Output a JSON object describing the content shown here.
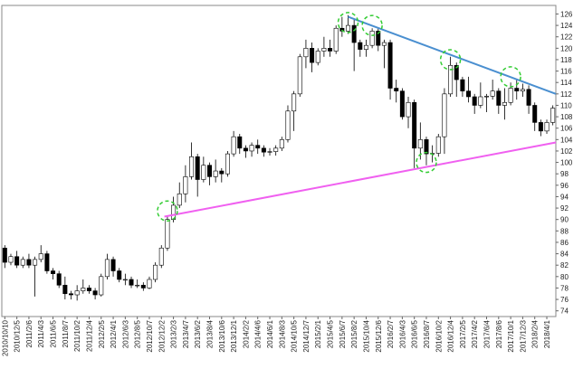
{
  "chart_data": {
    "type": "candlestick",
    "categories": [
      "2010/10/10",
      null,
      "2010/12/5",
      null,
      "2011/2/6",
      null,
      "2011/4/3",
      null,
      "2011/6/5",
      null,
      "2011/8/7",
      null,
      "2011/10/2",
      null,
      "2011/12/4",
      null,
      "2012/2/5",
      null,
      "2012/4/1",
      null,
      "2012/6/3",
      null,
      "2012/8/5",
      null,
      "2012/10/7",
      null,
      "2012/12/2",
      null,
      "2013/2/3",
      null,
      "2013/4/7",
      null,
      "2013/6/2",
      null,
      "2013/8/4",
      null,
      "2013/10/6",
      null,
      "2013/12/1",
      null,
      "2014/2/2",
      null,
      "2014/4/6",
      null,
      "2014/6/1",
      null,
      "2014/8/3",
      null,
      "2014/10/5",
      null,
      "2014/12/7",
      null,
      "2015/2/1",
      null,
      "2015/4/5",
      null,
      "2015/6/7",
      null,
      "2015/8/2",
      null,
      "2015/10/4",
      null,
      "2015/12/6",
      null,
      "2016/2/7",
      null,
      "2016/4/3",
      null,
      "2016/6/5",
      null,
      "2016/8/7",
      null,
      "2016/10/2",
      null,
      "2016/12/4",
      null,
      "2017/2/5",
      null,
      "2017/4/2",
      null,
      "2017/6/4",
      null,
      "2017/8/6",
      null,
      "2017/10/1",
      null,
      "2017/12/3",
      null,
      "2018/2/4",
      null,
      "2018/4/1",
      null
    ],
    "ohlc": [
      [
        85,
        85.5,
        81.5,
        82.5
      ],
      [
        82.5,
        84,
        82,
        83.5
      ],
      [
        83.5,
        84.5,
        81.5,
        82
      ],
      [
        82,
        83.5,
        81.5,
        83
      ],
      [
        83,
        84,
        81.5,
        82
      ],
      [
        82,
        83.5,
        76.5,
        83
      ],
      [
        83,
        85.5,
        82.5,
        84
      ],
      [
        84,
        84.5,
        80.5,
        81
      ],
      [
        81,
        81.5,
        79.5,
        80.5
      ],
      [
        80.5,
        81,
        78,
        78.5
      ],
      [
        78.5,
        80,
        76,
        77
      ],
      [
        77,
        77.5,
        76,
        76.8
      ],
      [
        76.8,
        78.5,
        75.8,
        77.5
      ],
      [
        77.5,
        79.5,
        77,
        78
      ],
      [
        78,
        78.5,
        77,
        77.5
      ],
      [
        77.5,
        78,
        76,
        76.8
      ],
      [
        76.8,
        80.5,
        76.5,
        80
      ],
      [
        80,
        84,
        79.5,
        83
      ],
      [
        83,
        83.5,
        80,
        81
      ],
      [
        81,
        81.5,
        79,
        79.5
      ],
      [
        79.5,
        80.5,
        78.5,
        79.5
      ],
      [
        79.5,
        80,
        78,
        78.5
      ],
      [
        78.5,
        79.5,
        78,
        78.5
      ],
      [
        78.5,
        79,
        77.5,
        78
      ],
      [
        78,
        80,
        77.8,
        79.5
      ],
      [
        79.5,
        82.5,
        79,
        82
      ],
      [
        82,
        85.5,
        81.5,
        85
      ],
      [
        85,
        90.5,
        84.5,
        90
      ],
      [
        90,
        94,
        89.5,
        92.5
      ],
      [
        92.5,
        96.5,
        92,
        94.5
      ],
      [
        94.5,
        99.5,
        93,
        97.5
      ],
      [
        97.5,
        103.5,
        97,
        101
      ],
      [
        101,
        101.5,
        94,
        97
      ],
      [
        97,
        101,
        96.5,
        99.5
      ],
      [
        99.5,
        100,
        96,
        97.5
      ],
      [
        97.5,
        100.5,
        96.5,
        98.5
      ],
      [
        98.5,
        99,
        96.5,
        98
      ],
      [
        98,
        102,
        97.5,
        101.5
      ],
      [
        101.5,
        105.5,
        101,
        104.5
      ],
      [
        104.5,
        105,
        101.5,
        102.5
      ],
      [
        102.5,
        103,
        100.8,
        102
      ],
      [
        102,
        103.5,
        101,
        103
      ],
      [
        103,
        104,
        101.5,
        102.5
      ],
      [
        102.5,
        103,
        101,
        101.8
      ],
      [
        101.8,
        102.5,
        101.2,
        101.9
      ],
      [
        101.9,
        103,
        101.2,
        102.5
      ],
      [
        102.5,
        104.5,
        102,
        104
      ],
      [
        104,
        110,
        103.5,
        109
      ],
      [
        109,
        112.5,
        105.5,
        112
      ],
      [
        112,
        119,
        111.5,
        118.5
      ],
      [
        118.5,
        121.5,
        116.5,
        120
      ],
      [
        120,
        121,
        115.8,
        117.5
      ],
      [
        117.5,
        120,
        117,
        119.5
      ],
      [
        119.5,
        122,
        118.5,
        120
      ],
      [
        120,
        121.5,
        118.5,
        119.5
      ],
      [
        119.5,
        124,
        119,
        123.5
      ],
      [
        123.5,
        125.5,
        122,
        123
      ],
      [
        123,
        125.8,
        122.5,
        124
      ],
      [
        124,
        125,
        116,
        121
      ],
      [
        121,
        121.5,
        118.5,
        119.8
      ],
      [
        119.8,
        121.5,
        118.5,
        120.5
      ],
      [
        120.5,
        123.5,
        120,
        123
      ],
      [
        123,
        123.5,
        119.5,
        120.5
      ],
      [
        120.5,
        121.5,
        116.5,
        121
      ],
      [
        121,
        121.5,
        111,
        113
      ],
      [
        113,
        114.5,
        110.5,
        112.5
      ],
      [
        112.5,
        113,
        107.5,
        108
      ],
      [
        108,
        111.5,
        106,
        110.5
      ],
      [
        110.5,
        111,
        99,
        102.5
      ],
      [
        102.5,
        107,
        100.5,
        104
      ],
      [
        104,
        104.5,
        99.5,
        101.5
      ],
      [
        101.5,
        103,
        100,
        101.6
      ],
      [
        101.6,
        105,
        101,
        104.5
      ],
      [
        104.5,
        113,
        101.5,
        112
      ],
      [
        112,
        118.5,
        111.5,
        117
      ],
      [
        117,
        117.5,
        111.5,
        114.5
      ],
      [
        114.5,
        115,
        111.5,
        112.5
      ],
      [
        112.5,
        115,
        110.5,
        111.5
      ],
      [
        111.5,
        112,
        108.5,
        110
      ],
      [
        110,
        114,
        109.5,
        111.5
      ],
      [
        111.5,
        112,
        108.8,
        111.6
      ],
      [
        111.6,
        114.5,
        111,
        112.5
      ],
      [
        112.5,
        113,
        108.5,
        110
      ],
      [
        110,
        113,
        107.5,
        110.5
      ],
      [
        110.5,
        114,
        110,
        113
      ],
      [
        113,
        114.5,
        111,
        112.5
      ],
      [
        112.5,
        113.8,
        111.5,
        112.8
      ],
      [
        112.8,
        113.5,
        108.5,
        110
      ],
      [
        110,
        110.5,
        105.5,
        107
      ],
      [
        107,
        107.5,
        104.6,
        105.5
      ],
      [
        105.5,
        107.5,
        105,
        107
      ],
      [
        107,
        110,
        106.5,
        109.5
      ]
    ],
    "up_color": "#ffffff",
    "down_color": "#000000",
    "ylim": [
      73,
      127.5
    ],
    "yticks": [
      74,
      76,
      78,
      80,
      82,
      84,
      86,
      88,
      90,
      92,
      94,
      96,
      98,
      100,
      102,
      104,
      106,
      108,
      110,
      112,
      114,
      116,
      118,
      120,
      122,
      124,
      126
    ],
    "trend_lines": [
      {
        "color": "#4a8fd0",
        "from": [
          57,
          125.5
        ],
        "to": [
          91.5,
          112
        ]
      },
      {
        "color": "#f060f0",
        "from": [
          26.5,
          90.5
        ],
        "to": [
          91.5,
          103.5
        ]
      }
    ],
    "highlights": {
      "color": "#33cc33",
      "points": [
        [
          27,
          91.5
        ],
        [
          57,
          124.5
        ],
        [
          61,
          124
        ],
        [
          70,
          100
        ],
        [
          74,
          118
        ],
        [
          84,
          115
        ]
      ]
    }
  }
}
